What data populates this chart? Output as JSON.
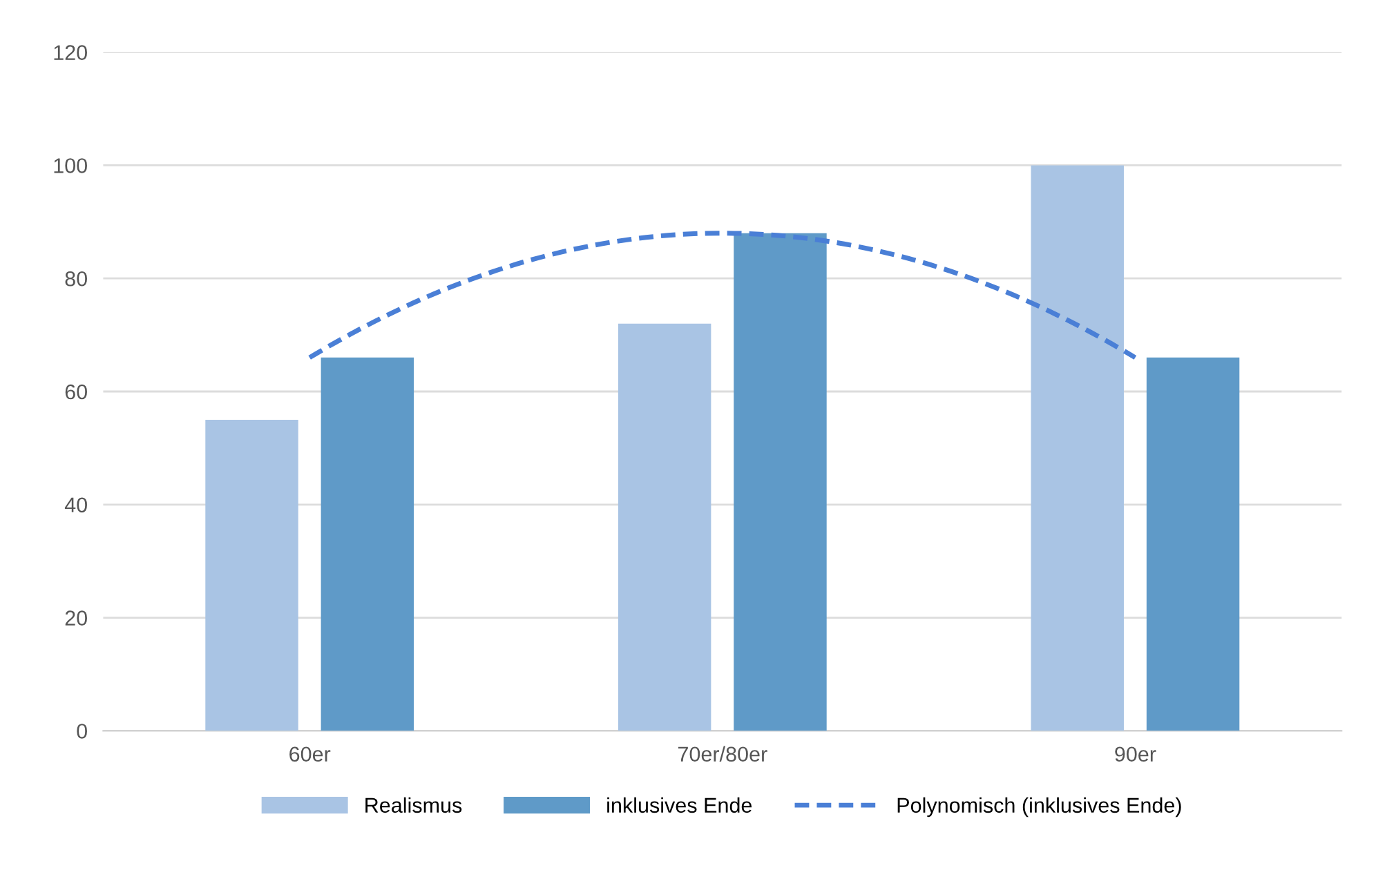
{
  "chart_data": {
    "type": "bar",
    "categories": [
      "60er",
      "70er/80er",
      "90er"
    ],
    "series": [
      {
        "name": "Realismus",
        "color": "#a9c4e4",
        "values": [
          55,
          72,
          100
        ]
      },
      {
        "name": "inklusives Ende",
        "color": "#5f9ac8",
        "values": [
          66,
          88,
          66
        ]
      },
      {
        "name": "Polynomisch (inklusives Ende)",
        "type": "line",
        "line_style": "dashed",
        "color": "#4a7fd6",
        "values": [
          66,
          88,
          66
        ]
      }
    ],
    "ylim": [
      0,
      120
    ],
    "yticks": [
      0,
      20,
      40,
      60,
      80,
      100,
      120
    ],
    "grid": "y",
    "legend": "bottom"
  }
}
